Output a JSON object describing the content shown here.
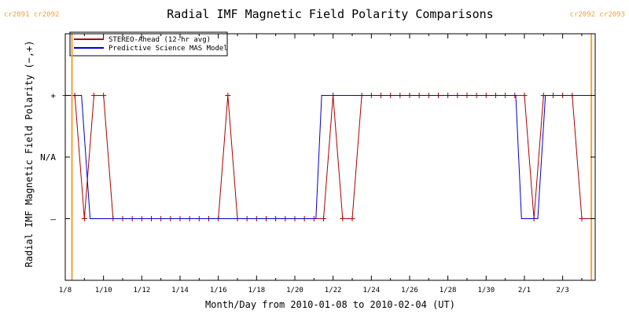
{
  "chart_data": {
    "type": "line",
    "title": "Radial IMF Magnetic Field Polarity Comparisons",
    "xlabel": "Month/Day from 2010-01-08 to 2010-02-04 (UT)",
    "ylabel": "Radial IMF Magnetic Field Polarity (−,+)",
    "x_unit": "days after 2010-01-08 00:00 UT",
    "xlim": [
      0,
      27.7
    ],
    "ylim": [
      -2,
      2
    ],
    "yticks": [
      {
        "value": 1,
        "label": "+"
      },
      {
        "value": 0,
        "label": "N/A"
      },
      {
        "value": -1,
        "label": "–"
      }
    ],
    "xticks": [
      {
        "value": 0,
        "label": "1/8"
      },
      {
        "value": 2,
        "label": "1/10"
      },
      {
        "value": 4,
        "label": "1/12"
      },
      {
        "value": 6,
        "label": "1/14"
      },
      {
        "value": 8,
        "label": "1/16"
      },
      {
        "value": 10,
        "label": "1/18"
      },
      {
        "value": 12,
        "label": "1/20"
      },
      {
        "value": 14,
        "label": "1/22"
      },
      {
        "value": 16,
        "label": "1/24"
      },
      {
        "value": 18,
        "label": "1/26"
      },
      {
        "value": 20,
        "label": "1/28"
      },
      {
        "value": 22,
        "label": "1/30"
      },
      {
        "value": 24,
        "label": "2/1"
      },
      {
        "value": 26,
        "label": "2/3"
      }
    ],
    "carrington_boundaries": [
      {
        "x": 0.35,
        "left_label": "cr2091",
        "right_label": "cr2092",
        "label_side": "left"
      },
      {
        "x": 27.5,
        "left_label": "cr2092",
        "right_label": "cr2093",
        "label_side": "right"
      }
    ],
    "series": [
      {
        "name": "STEREO-Ahead (12-hr avg)",
        "color": "#aa0000",
        "markers": true,
        "x": [
          0,
          0.5,
          1,
          1.5,
          2,
          2.5,
          3,
          3.5,
          4,
          4.5,
          5,
          5.5,
          6,
          6.5,
          7,
          7.5,
          8,
          8.5,
          9,
          9.5,
          10,
          10.5,
          11,
          11.5,
          12,
          12.5,
          13,
          13.5,
          14,
          14.5,
          15,
          15.5,
          16,
          16.5,
          17,
          17.5,
          18,
          18.5,
          19,
          19.5,
          20,
          20.5,
          21,
          21.5,
          22,
          22.5,
          23,
          23.5,
          24,
          24.5,
          25,
          25.5,
          26,
          26.5,
          27,
          27.5
        ],
        "values": [
          1,
          1,
          -1,
          1,
          1,
          -1,
          -1,
          -1,
          -1,
          -1,
          -1,
          -1,
          -1,
          -1,
          -1,
          -1,
          -1,
          1,
          -1,
          -1,
          -1,
          -1,
          -1,
          -1,
          -1,
          -1,
          -1,
          -1,
          1,
          -1,
          -1,
          1,
          1,
          1,
          1,
          1,
          1,
          1,
          1,
          1,
          1,
          1,
          1,
          1,
          1,
          1,
          1,
          1,
          1,
          -1,
          1,
          1,
          1,
          1,
          -1,
          -1
        ]
      },
      {
        "name": "Predictive Science MAS Model",
        "color": "#0000cc",
        "markers": false,
        "x": [
          0.0,
          0.85,
          1.3,
          13.1,
          13.4,
          23.55,
          23.85,
          24.7,
          25.1,
          27.7
        ],
        "values": [
          1,
          1,
          -1,
          -1,
          1,
          1,
          -1,
          -1,
          1,
          1
        ]
      }
    ],
    "legend": {
      "position": "top-left"
    }
  }
}
